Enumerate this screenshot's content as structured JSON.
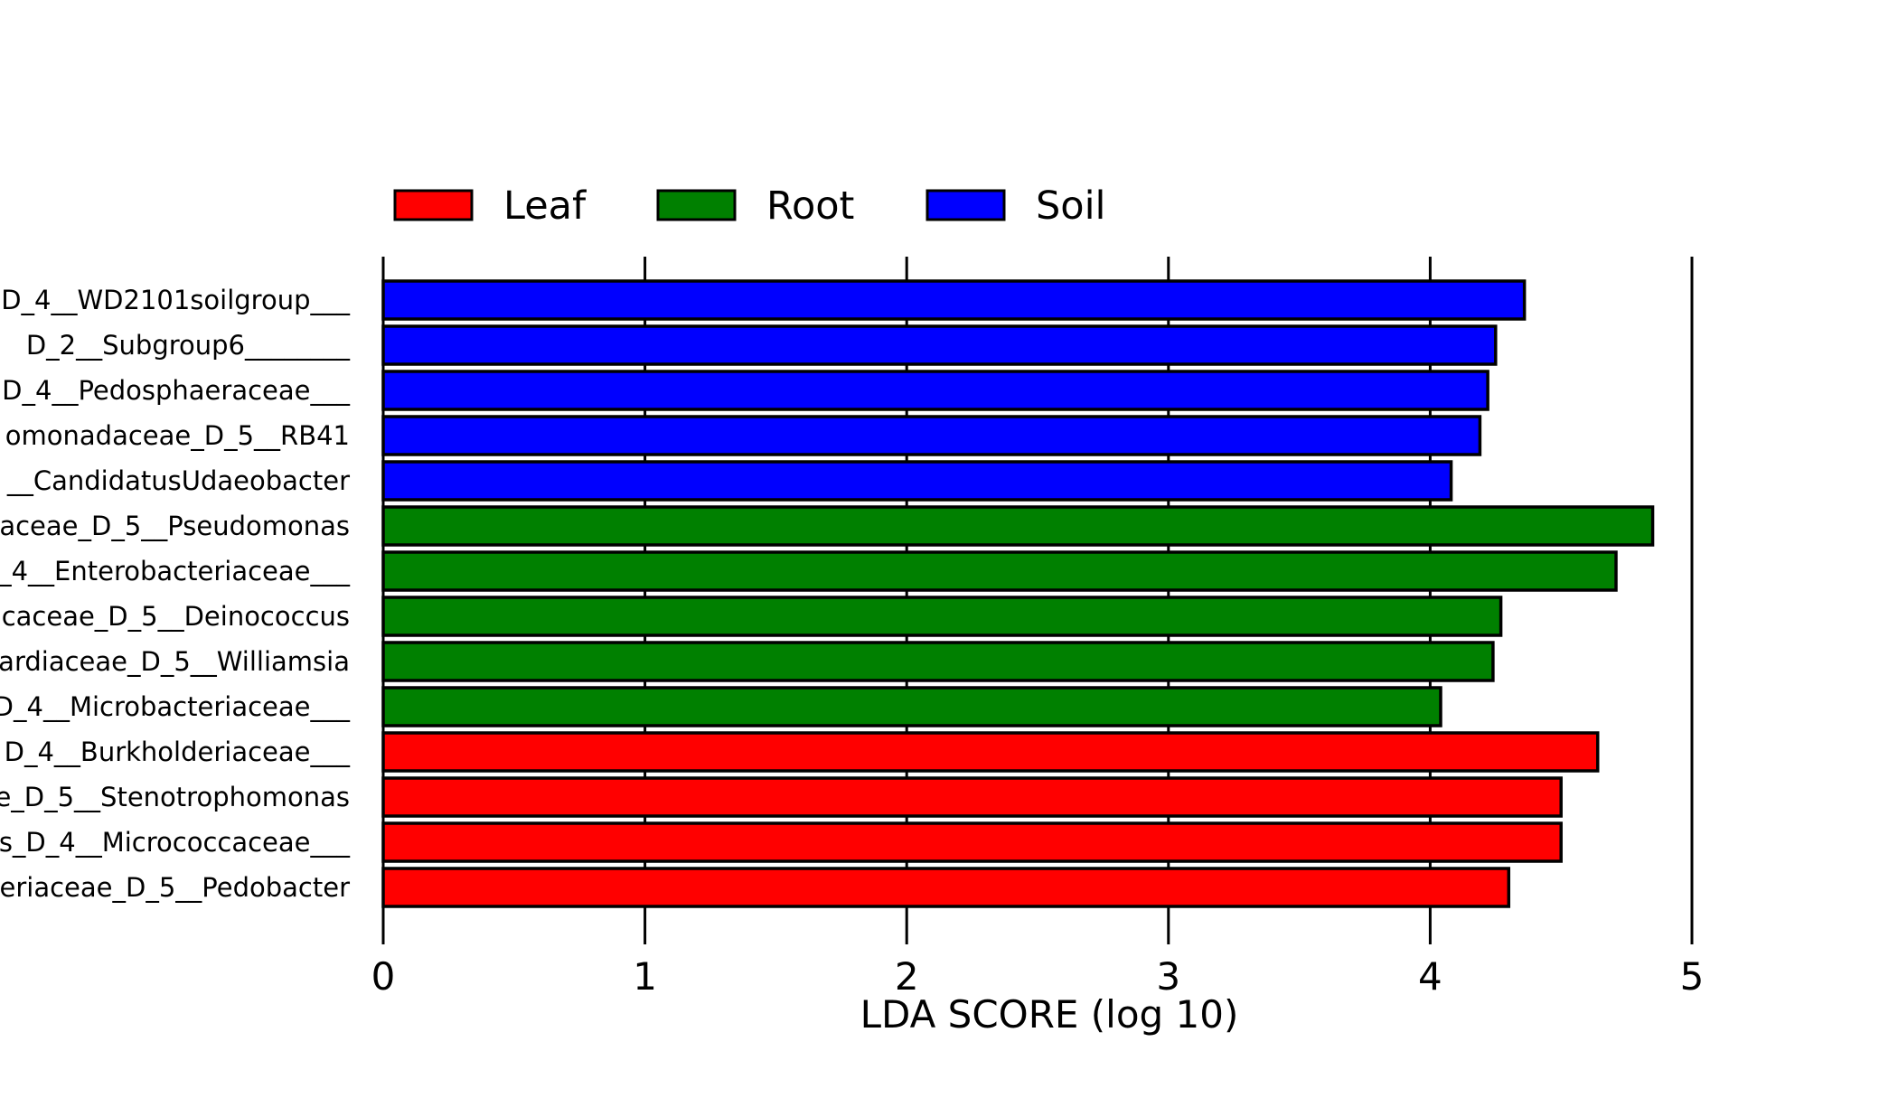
{
  "chart_data": {
    "type": "bar",
    "orientation": "horizontal",
    "title": "",
    "xlabel": "LDA SCORE (log 10)",
    "ylabel": "",
    "xlim": [
      0,
      5
    ],
    "xticks": [
      "0",
      "1",
      "2",
      "3",
      "4",
      "5"
    ],
    "grid": "vertical lines at major ticks",
    "legend": {
      "placement": "top",
      "entries": [
        {
          "name": "Leaf",
          "color": "#ff0000"
        },
        {
          "name": "Root",
          "color": "#008000"
        },
        {
          "name": "Soil",
          "color": "#0000ff"
        }
      ]
    },
    "categories": [
      "D_4__WD2101soilgroup___",
      "D_2__Subgroup6________",
      "D_4__Pedosphaeraceae___",
      "omonadaceae_D_5__RB41",
      "__CandidatusUdaeobacter",
      "aceae_D_5__Pseudomonas",
      "_4__Enterobacteriaceae___",
      "caceae_D_5__Deinococcus",
      "ardiaceae_D_5__Williamsia",
      "D_4__Microbacteriaceae___",
      "D_4__Burkholderiaceae___",
      "e_D_5__Stenotrophomonas",
      "s_D_4__Micrococcaceae___",
      "eriaceae_D_5__Pedobacter"
    ],
    "values": [
      4.36,
      4.25,
      4.22,
      4.19,
      4.08,
      4.85,
      4.71,
      4.27,
      4.24,
      4.04,
      4.64,
      4.5,
      4.5,
      4.3
    ],
    "groups": [
      "Soil",
      "Soil",
      "Soil",
      "Soil",
      "Soil",
      "Root",
      "Root",
      "Root",
      "Root",
      "Root",
      "Leaf",
      "Leaf",
      "Leaf",
      "Leaf"
    ]
  }
}
